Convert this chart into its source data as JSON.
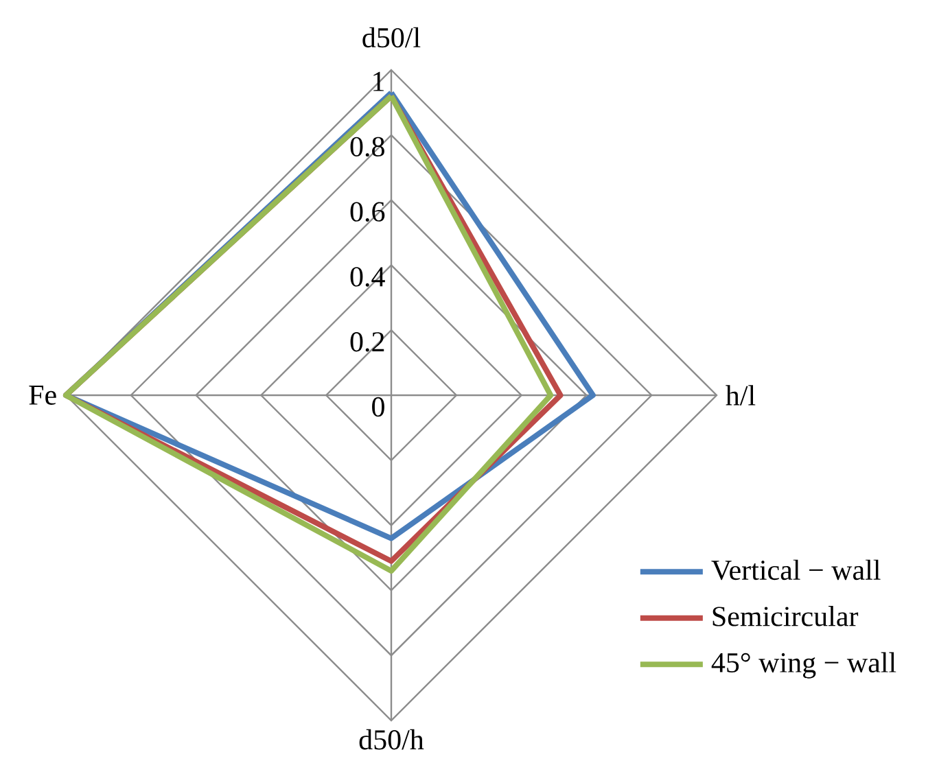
{
  "chart_data": {
    "type": "radar",
    "categories": [
      "d50/l",
      "h/l",
      "d50/h",
      "Fe"
    ],
    "series": [
      {
        "name": "Vertical − wall",
        "color": "#4a7ebb",
        "values": [
          0.93,
          0.62,
          0.44,
          1.0
        ]
      },
      {
        "name": "Semicircular",
        "color": "#be4b48",
        "values": [
          0.92,
          0.52,
          0.51,
          1.0
        ]
      },
      {
        "name": "45° wing − wall",
        "color": "#98b954",
        "values": [
          0.92,
          0.49,
          0.54,
          1.0
        ]
      }
    ],
    "ylim": [
      0,
      1
    ],
    "yticks": [
      0,
      0.2,
      0.4,
      0.6,
      0.8,
      1
    ],
    "grid": true,
    "legend": "bottom right",
    "marker": "none",
    "line_style": "solid"
  }
}
